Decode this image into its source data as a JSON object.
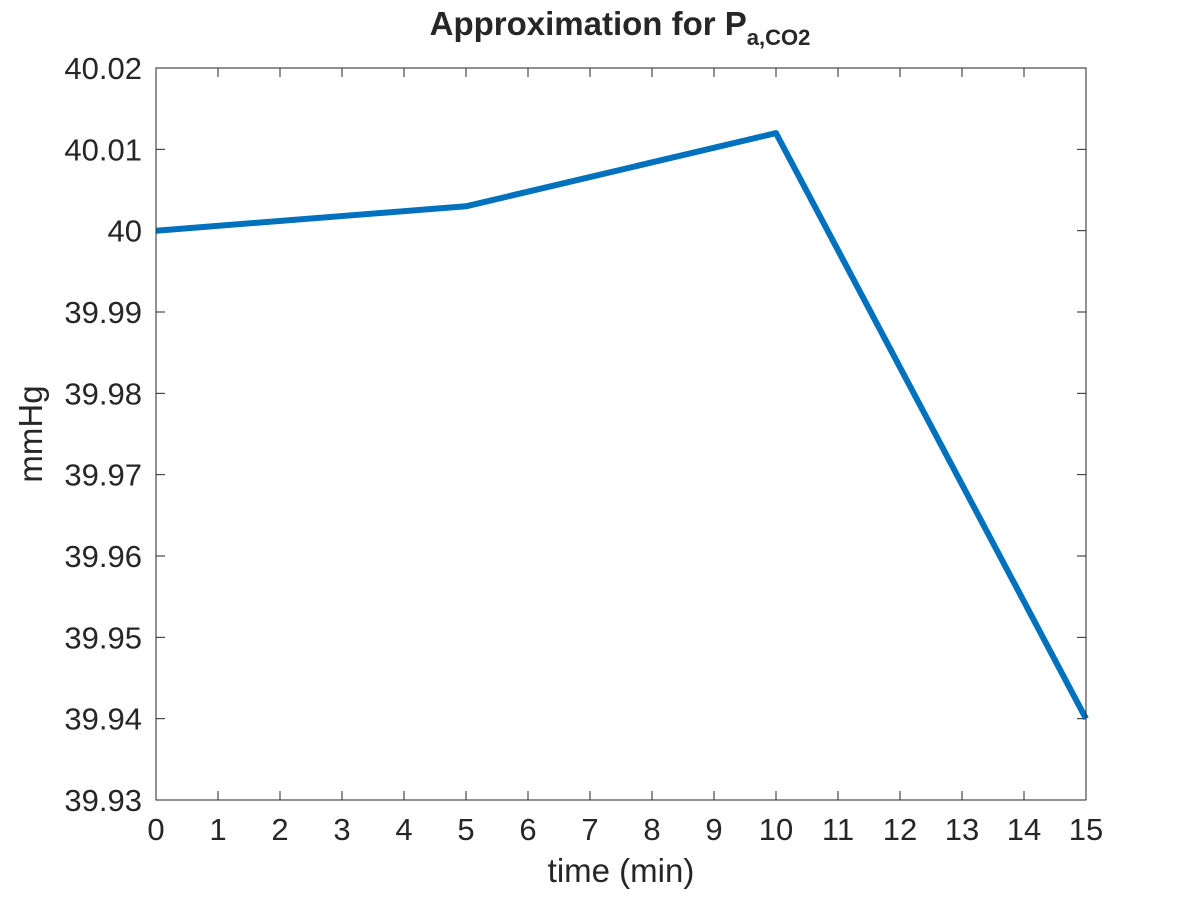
{
  "chart_data": {
    "type": "line",
    "title": "Approximation for P",
    "title_subscript": "a,CO2",
    "xlabel": "time (min)",
    "ylabel": "mmHg",
    "xlim": [
      0,
      15
    ],
    "ylim": [
      39.93,
      40.02
    ],
    "x_ticks": [
      0,
      1,
      2,
      3,
      4,
      5,
      6,
      7,
      8,
      9,
      10,
      11,
      12,
      13,
      14,
      15
    ],
    "y_ticks": [
      "39.93",
      "39.94",
      "39.95",
      "39.96",
      "39.97",
      "39.98",
      "39.99",
      "40",
      "40.01",
      "40.02"
    ],
    "grid": false,
    "series": [
      {
        "color": "#0072BD",
        "x": [
          0,
          5,
          10,
          15
        ],
        "y": [
          40.0,
          40.003,
          40.012,
          39.94
        ]
      }
    ]
  }
}
